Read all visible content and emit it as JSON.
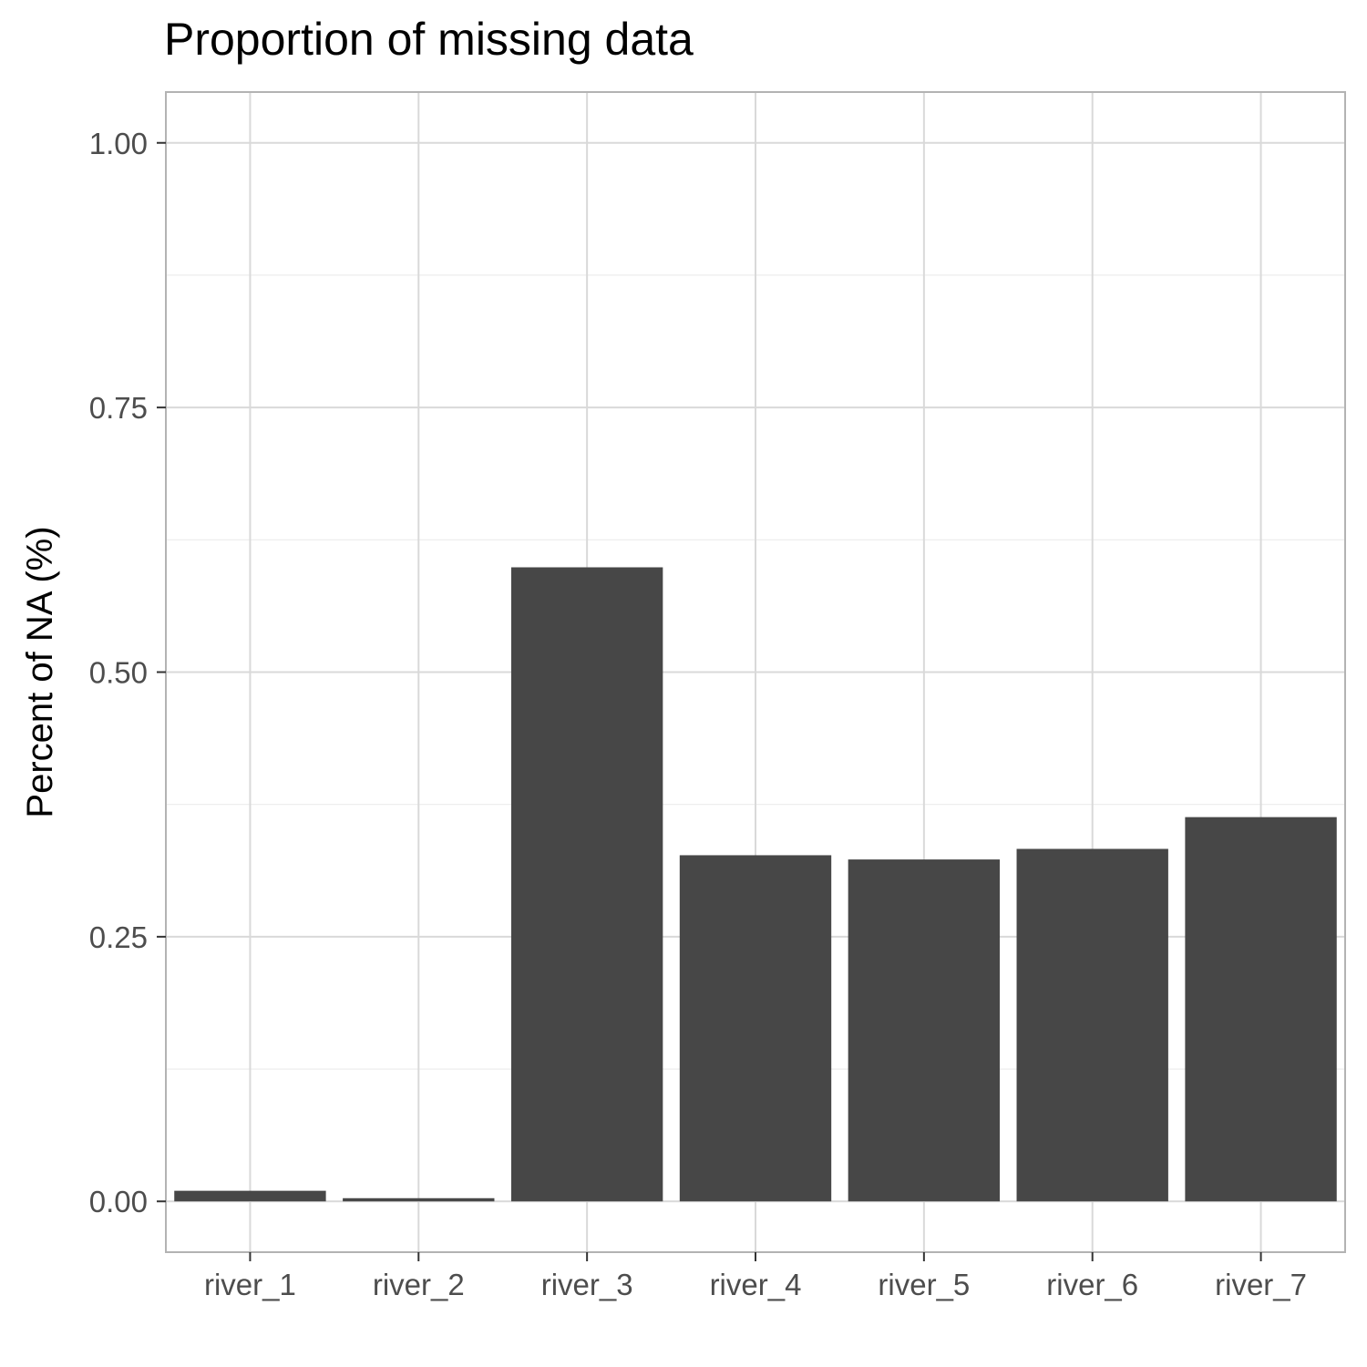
{
  "chart_data": {
    "type": "bar",
    "title": "Proportion of missing data",
    "xlabel": "",
    "ylabel": "Percent of NA (%)",
    "categories": [
      "river_1",
      "river_2",
      "river_3",
      "river_4",
      "river_5",
      "river_6",
      "river_7"
    ],
    "values": [
      0.01,
      0.003,
      0.599,
      0.327,
      0.323,
      0.333,
      0.363
    ],
    "ylim": [
      -0.048,
      1.048
    ],
    "yticks": [
      0,
      0.25,
      0.5,
      0.75,
      1
    ],
    "ytick_labels": [
      "0.00",
      "0.25",
      "0.50",
      "0.75",
      "1.00"
    ],
    "grid": true,
    "bar_color": "#474747"
  }
}
